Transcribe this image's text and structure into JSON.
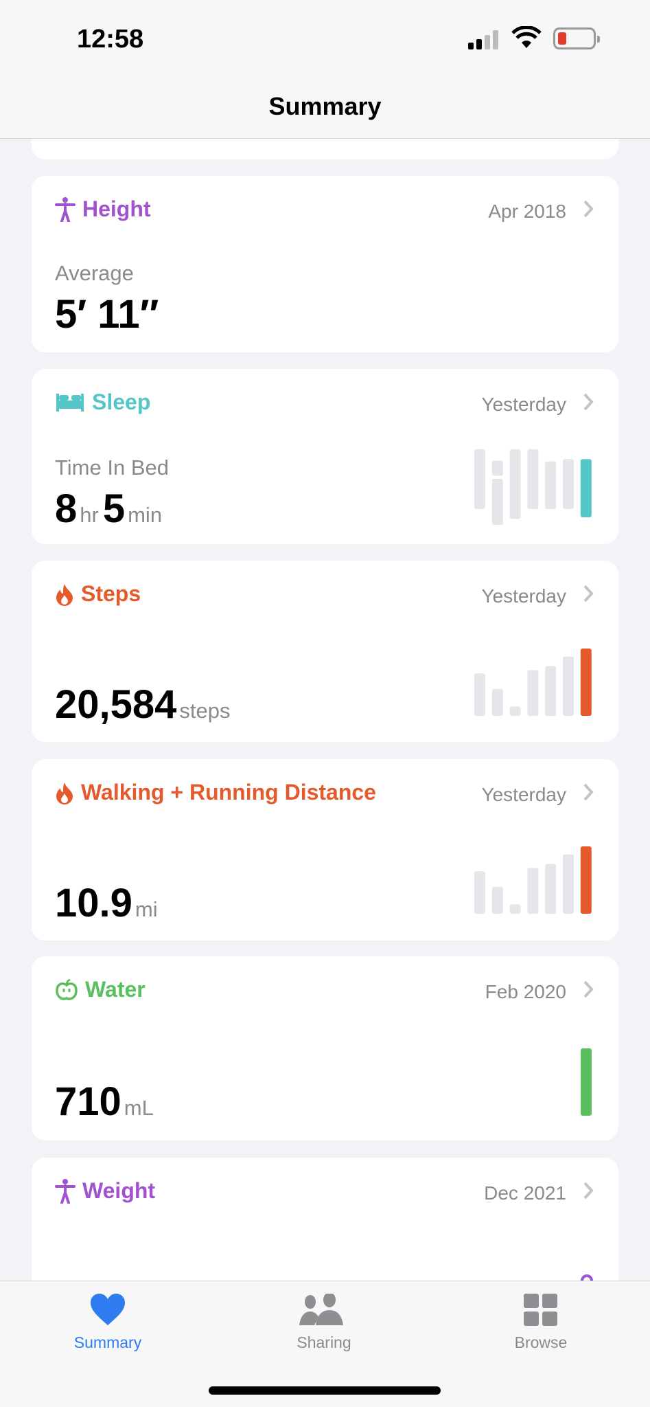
{
  "status": {
    "time": "12:58",
    "battery_level": 0.15
  },
  "header": {
    "title": "Summary"
  },
  "colors": {
    "purple": "#a052d0",
    "teal": "#55c6c8",
    "orange": "#e55a2b",
    "green": "#5ac05e",
    "blue": "#2f7bf0",
    "gray_bar": "#e5e5ea"
  },
  "cards": [
    {
      "title": "Height",
      "icon": "accessibility-figure-icon",
      "date": "Apr 2018",
      "label": "Average",
      "value": "5′ 11″"
    },
    {
      "title": "Sleep",
      "icon": "bed-icon",
      "date": "Yesterday",
      "label": "Time In Bed",
      "hours": "8",
      "hr_unit": "hr",
      "minutes": "5",
      "min_unit": "min"
    },
    {
      "title": "Steps",
      "icon": "flame-icon",
      "date": "Yesterday",
      "value": "20,584",
      "unit": "steps"
    },
    {
      "title": "Walking + Running Distance",
      "icon": "flame-icon",
      "date": "Yesterday",
      "value": "10.9",
      "unit": "mi"
    },
    {
      "title": "Water",
      "icon": "apple-icon",
      "date": "Feb 2020",
      "value": "710",
      "unit": "mL"
    },
    {
      "title": "Weight",
      "icon": "accessibility-figure-icon",
      "date": "Dec 2021"
    }
  ],
  "chart_data": [
    {
      "type": "bar",
      "name_ref": "sleep",
      "ranges": [
        [
          [
            0.0,
            0.79
          ]
        ],
        [
          [
            0.15,
            0.35
          ],
          [
            0.39,
            1.0
          ]
        ],
        [
          [
            0.0,
            0.92
          ]
        ],
        [
          [
            0.0,
            0.79
          ]
        ],
        [
          [
            0.16,
            0.79
          ]
        ],
        [
          [
            0.13,
            0.79
          ]
        ],
        [
          [
            0.13,
            0.9
          ]
        ]
      ]
    },
    {
      "type": "bar",
      "name_ref": "steps",
      "values": [
        0.63,
        0.4,
        0.14,
        0.68,
        0.74,
        0.88,
        1.0
      ]
    },
    {
      "type": "bar",
      "name_ref": "distance",
      "values": [
        0.63,
        0.4,
        0.14,
        0.68,
        0.74,
        0.88,
        1.0
      ]
    },
    {
      "type": "bar",
      "name_ref": "water",
      "values": [
        1.0
      ]
    }
  ],
  "tabs": [
    {
      "label": "Summary",
      "icon": "heart-icon",
      "active": true
    },
    {
      "label": "Sharing",
      "icon": "people-icon"
    },
    {
      "label": "Browse",
      "icon": "grid-icon"
    }
  ]
}
